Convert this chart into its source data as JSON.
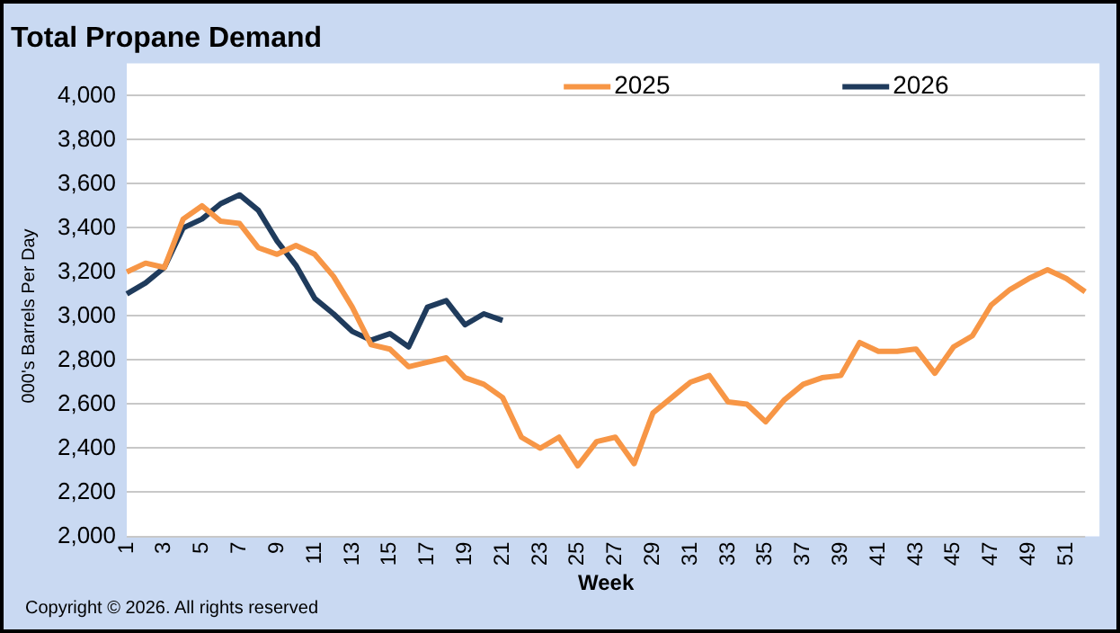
{
  "chart_data": {
    "type": "line",
    "title": "Total Propane Demand",
    "xlabel": "Week",
    "ylabel": "000's Barrels Per Day",
    "categories": [
      "1",
      null,
      "3",
      null,
      "5",
      null,
      "7",
      null,
      "9",
      null,
      "11",
      null,
      "13",
      null,
      "15",
      null,
      "17",
      null,
      "19",
      null,
      "21",
      null,
      "23",
      null,
      "25",
      null,
      "27",
      null,
      "29",
      null,
      "31",
      null,
      "33",
      null,
      "35",
      null,
      "37",
      null,
      "39",
      null,
      "41",
      null,
      "43",
      null,
      "45",
      null,
      "47",
      null,
      "49",
      null,
      "51",
      null
    ],
    "series": [
      {
        "name": "2025",
        "color": "#f79646",
        "values": [
          3200,
          3240,
          3220,
          3440,
          3500,
          3430,
          3420,
          3310,
          3280,
          3320,
          3280,
          3180,
          3040,
          2870,
          2850,
          2770,
          2790,
          2810,
          2720,
          2690,
          2630,
          2450,
          2400,
          2450,
          2320,
          2430,
          2450,
          2330,
          2560,
          2630,
          2700,
          2730,
          2610,
          2600,
          2520,
          2620,
          2690,
          2720,
          2730,
          2880,
          2840,
          2840,
          2850,
          2740,
          2860,
          2910,
          3050,
          3120,
          3170,
          3210,
          3170,
          3110
        ]
      },
      {
        "name": "2026",
        "color": "#1f3b5c",
        "values": [
          3100,
          3150,
          3220,
          3400,
          3440,
          3510,
          3550,
          3480,
          3340,
          3230,
          3080,
          3010,
          2930,
          2890,
          2920,
          2860,
          3040,
          3070,
          2960,
          3010,
          2980,
          null,
          null,
          null,
          null,
          null,
          null,
          null,
          null,
          null,
          null,
          null,
          null,
          null,
          null,
          null,
          null,
          null,
          null,
          null,
          null,
          null,
          null,
          null,
          null,
          null,
          null,
          null,
          null,
          null,
          null,
          null
        ]
      }
    ],
    "ylim": [
      2000,
      4000
    ],
    "yticks": [
      {
        "value": 2000,
        "label": "2,000"
      },
      {
        "value": 2200,
        "label": "2,200"
      },
      {
        "value": 2400,
        "label": "2,400"
      },
      {
        "value": 2600,
        "label": "2,600"
      },
      {
        "value": 2800,
        "label": "2,800"
      },
      {
        "value": 3000,
        "label": "3,000"
      },
      {
        "value": 3200,
        "label": "3,200"
      },
      {
        "value": 3400,
        "label": "3,400"
      },
      {
        "value": 3600,
        "label": "3,600"
      },
      {
        "value": 3800,
        "label": "3,800"
      },
      {
        "value": 4000,
        "label": "4,000"
      }
    ],
    "grid": "y",
    "legend": "top right",
    "marker": "none",
    "line_style": "solid",
    "annotations": [
      "Copyright © 2026. All rights reserved"
    ]
  }
}
